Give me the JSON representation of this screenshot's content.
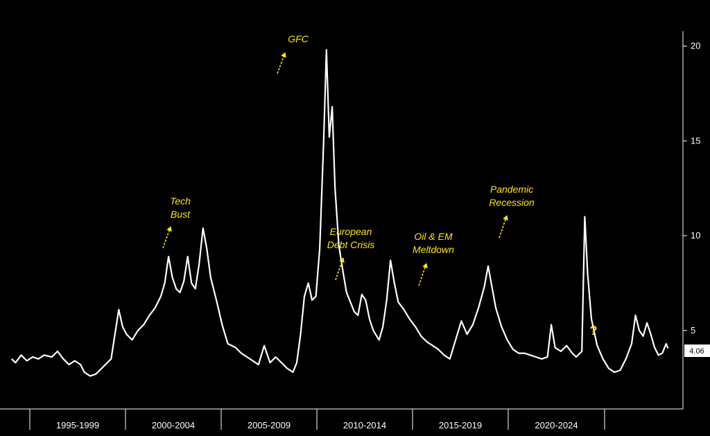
{
  "chart_data": {
    "type": "line",
    "ylim": [
      0,
      21
    ],
    "y_ticks": [
      "5",
      "10",
      "15",
      "20"
    ],
    "x_period_labels": [
      "1995-1999",
      "2000-2004",
      "2005-2009",
      "2010-2014",
      "2015-2019",
      "2020-2024"
    ],
    "last_value_label": "4.06",
    "annotations": [
      {
        "text": [
          "GFC"
        ],
        "x": 2008.9
      },
      {
        "text": [
          "Tech",
          "Bust"
        ],
        "x": 2002.8
      },
      {
        "text": [
          "European",
          "Debt Crisis"
        ],
        "x": 2011.7
      },
      {
        "text": [
          "Oil & EM",
          "Meltdown"
        ],
        "x": 2016.1
      },
      {
        "text": [
          "Pandemic",
          "Recession"
        ],
        "x": 2020.0
      }
    ],
    "question_mark": "?",
    "series": [
      {
        "color": "#ffffff",
        "points": [
          [
            1993.1,
            3.5
          ],
          [
            1993.3,
            3.3
          ],
          [
            1993.6,
            3.7
          ],
          [
            1993.9,
            3.4
          ],
          [
            1994.2,
            3.6
          ],
          [
            1994.5,
            3.5
          ],
          [
            1994.8,
            3.7
          ],
          [
            1995.2,
            3.6
          ],
          [
            1995.5,
            3.9
          ],
          [
            1995.8,
            3.5
          ],
          [
            1996.1,
            3.2
          ],
          [
            1996.4,
            3.4
          ],
          [
            1996.7,
            3.2
          ],
          [
            1996.9,
            2.8
          ],
          [
            1997.2,
            2.6
          ],
          [
            1997.5,
            2.7
          ],
          [
            1997.8,
            3.0
          ],
          [
            1998.1,
            3.3
          ],
          [
            1998.3,
            3.5
          ],
          [
            1998.5,
            4.8
          ],
          [
            1998.7,
            6.1
          ],
          [
            1998.9,
            5.2
          ],
          [
            1999.1,
            4.8
          ],
          [
            1999.4,
            4.5
          ],
          [
            1999.7,
            5.0
          ],
          [
            2000.0,
            5.3
          ],
          [
            2000.3,
            5.8
          ],
          [
            2000.6,
            6.2
          ],
          [
            2000.9,
            6.8
          ],
          [
            2001.1,
            7.5
          ],
          [
            2001.3,
            8.9
          ],
          [
            2001.5,
            7.8
          ],
          [
            2001.7,
            7.2
          ],
          [
            2001.9,
            7.0
          ],
          [
            2002.1,
            7.6
          ],
          [
            2002.3,
            8.9
          ],
          [
            2002.5,
            7.5
          ],
          [
            2002.7,
            7.2
          ],
          [
            2002.9,
            8.5
          ],
          [
            2003.1,
            10.4
          ],
          [
            2003.3,
            9.3
          ],
          [
            2003.5,
            7.8
          ],
          [
            2003.8,
            6.6
          ],
          [
            2004.1,
            5.3
          ],
          [
            2004.4,
            4.3
          ],
          [
            2004.8,
            4.1
          ],
          [
            2005.1,
            3.8
          ],
          [
            2005.4,
            3.6
          ],
          [
            2005.7,
            3.4
          ],
          [
            2006.0,
            3.2
          ],
          [
            2006.3,
            4.2
          ],
          [
            2006.6,
            3.3
          ],
          [
            2006.9,
            3.6
          ],
          [
            2007.2,
            3.3
          ],
          [
            2007.5,
            3.0
          ],
          [
            2007.8,
            2.8
          ],
          [
            2008.0,
            3.3
          ],
          [
            2008.2,
            4.8
          ],
          [
            2008.4,
            6.8
          ],
          [
            2008.6,
            7.5
          ],
          [
            2008.8,
            6.6
          ],
          [
            2009.0,
            6.8
          ],
          [
            2009.2,
            9.3
          ],
          [
            2009.4,
            14.8
          ],
          [
            2009.55,
            19.8
          ],
          [
            2009.7,
            15.2
          ],
          [
            2009.85,
            16.8
          ],
          [
            2010.0,
            12.5
          ],
          [
            2010.2,
            9.5
          ],
          [
            2010.4,
            8.2
          ],
          [
            2010.6,
            7.0
          ],
          [
            2010.8,
            6.5
          ],
          [
            2011.0,
            6.0
          ],
          [
            2011.2,
            5.8
          ],
          [
            2011.4,
            6.9
          ],
          [
            2011.6,
            6.6
          ],
          [
            2011.8,
            5.6
          ],
          [
            2012.0,
            5.0
          ],
          [
            2012.3,
            4.5
          ],
          [
            2012.5,
            5.2
          ],
          [
            2012.7,
            6.6
          ],
          [
            2012.9,
            8.7
          ],
          [
            2013.1,
            7.5
          ],
          [
            2013.3,
            6.5
          ],
          [
            2013.6,
            6.1
          ],
          [
            2013.9,
            5.6
          ],
          [
            2014.2,
            5.2
          ],
          [
            2014.5,
            4.7
          ],
          [
            2014.8,
            4.4
          ],
          [
            2015.1,
            4.2
          ],
          [
            2015.4,
            4.0
          ],
          [
            2015.7,
            3.7
          ],
          [
            2016.0,
            3.5
          ],
          [
            2016.3,
            4.5
          ],
          [
            2016.6,
            5.5
          ],
          [
            2016.9,
            4.8
          ],
          [
            2017.2,
            5.3
          ],
          [
            2017.5,
            6.2
          ],
          [
            2017.8,
            7.3
          ],
          [
            2018.0,
            8.4
          ],
          [
            2018.2,
            7.3
          ],
          [
            2018.4,
            6.2
          ],
          [
            2018.7,
            5.2
          ],
          [
            2019.0,
            4.5
          ],
          [
            2019.3,
            4.0
          ],
          [
            2019.6,
            3.8
          ],
          [
            2019.9,
            3.8
          ],
          [
            2020.2,
            3.7
          ],
          [
            2020.5,
            3.6
          ],
          [
            2020.8,
            3.5
          ],
          [
            2021.1,
            3.6
          ],
          [
            2021.3,
            5.3
          ],
          [
            2021.5,
            4.1
          ],
          [
            2021.8,
            3.9
          ],
          [
            2022.1,
            4.2
          ],
          [
            2022.4,
            3.8
          ],
          [
            2022.6,
            3.6
          ],
          [
            2022.9,
            3.9
          ],
          [
            2023.05,
            11.0
          ],
          [
            2023.2,
            8.0
          ],
          [
            2023.4,
            5.6
          ],
          [
            2023.7,
            4.2
          ],
          [
            2024.0,
            3.5
          ],
          [
            2024.3,
            3.0
          ],
          [
            2024.6,
            2.8
          ],
          [
            2024.9,
            2.9
          ],
          [
            2025.2,
            3.5
          ],
          [
            2025.5,
            4.3
          ],
          [
            2025.7,
            5.8
          ],
          [
            2025.9,
            5.0
          ],
          [
            2026.1,
            4.7
          ],
          [
            2026.3,
            5.4
          ],
          [
            2026.5,
            4.8
          ],
          [
            2026.7,
            4.1
          ],
          [
            2026.9,
            3.7
          ],
          [
            2027.1,
            3.8
          ],
          [
            2027.3,
            4.3
          ],
          [
            2027.4,
            4.06
          ]
        ]
      }
    ]
  }
}
